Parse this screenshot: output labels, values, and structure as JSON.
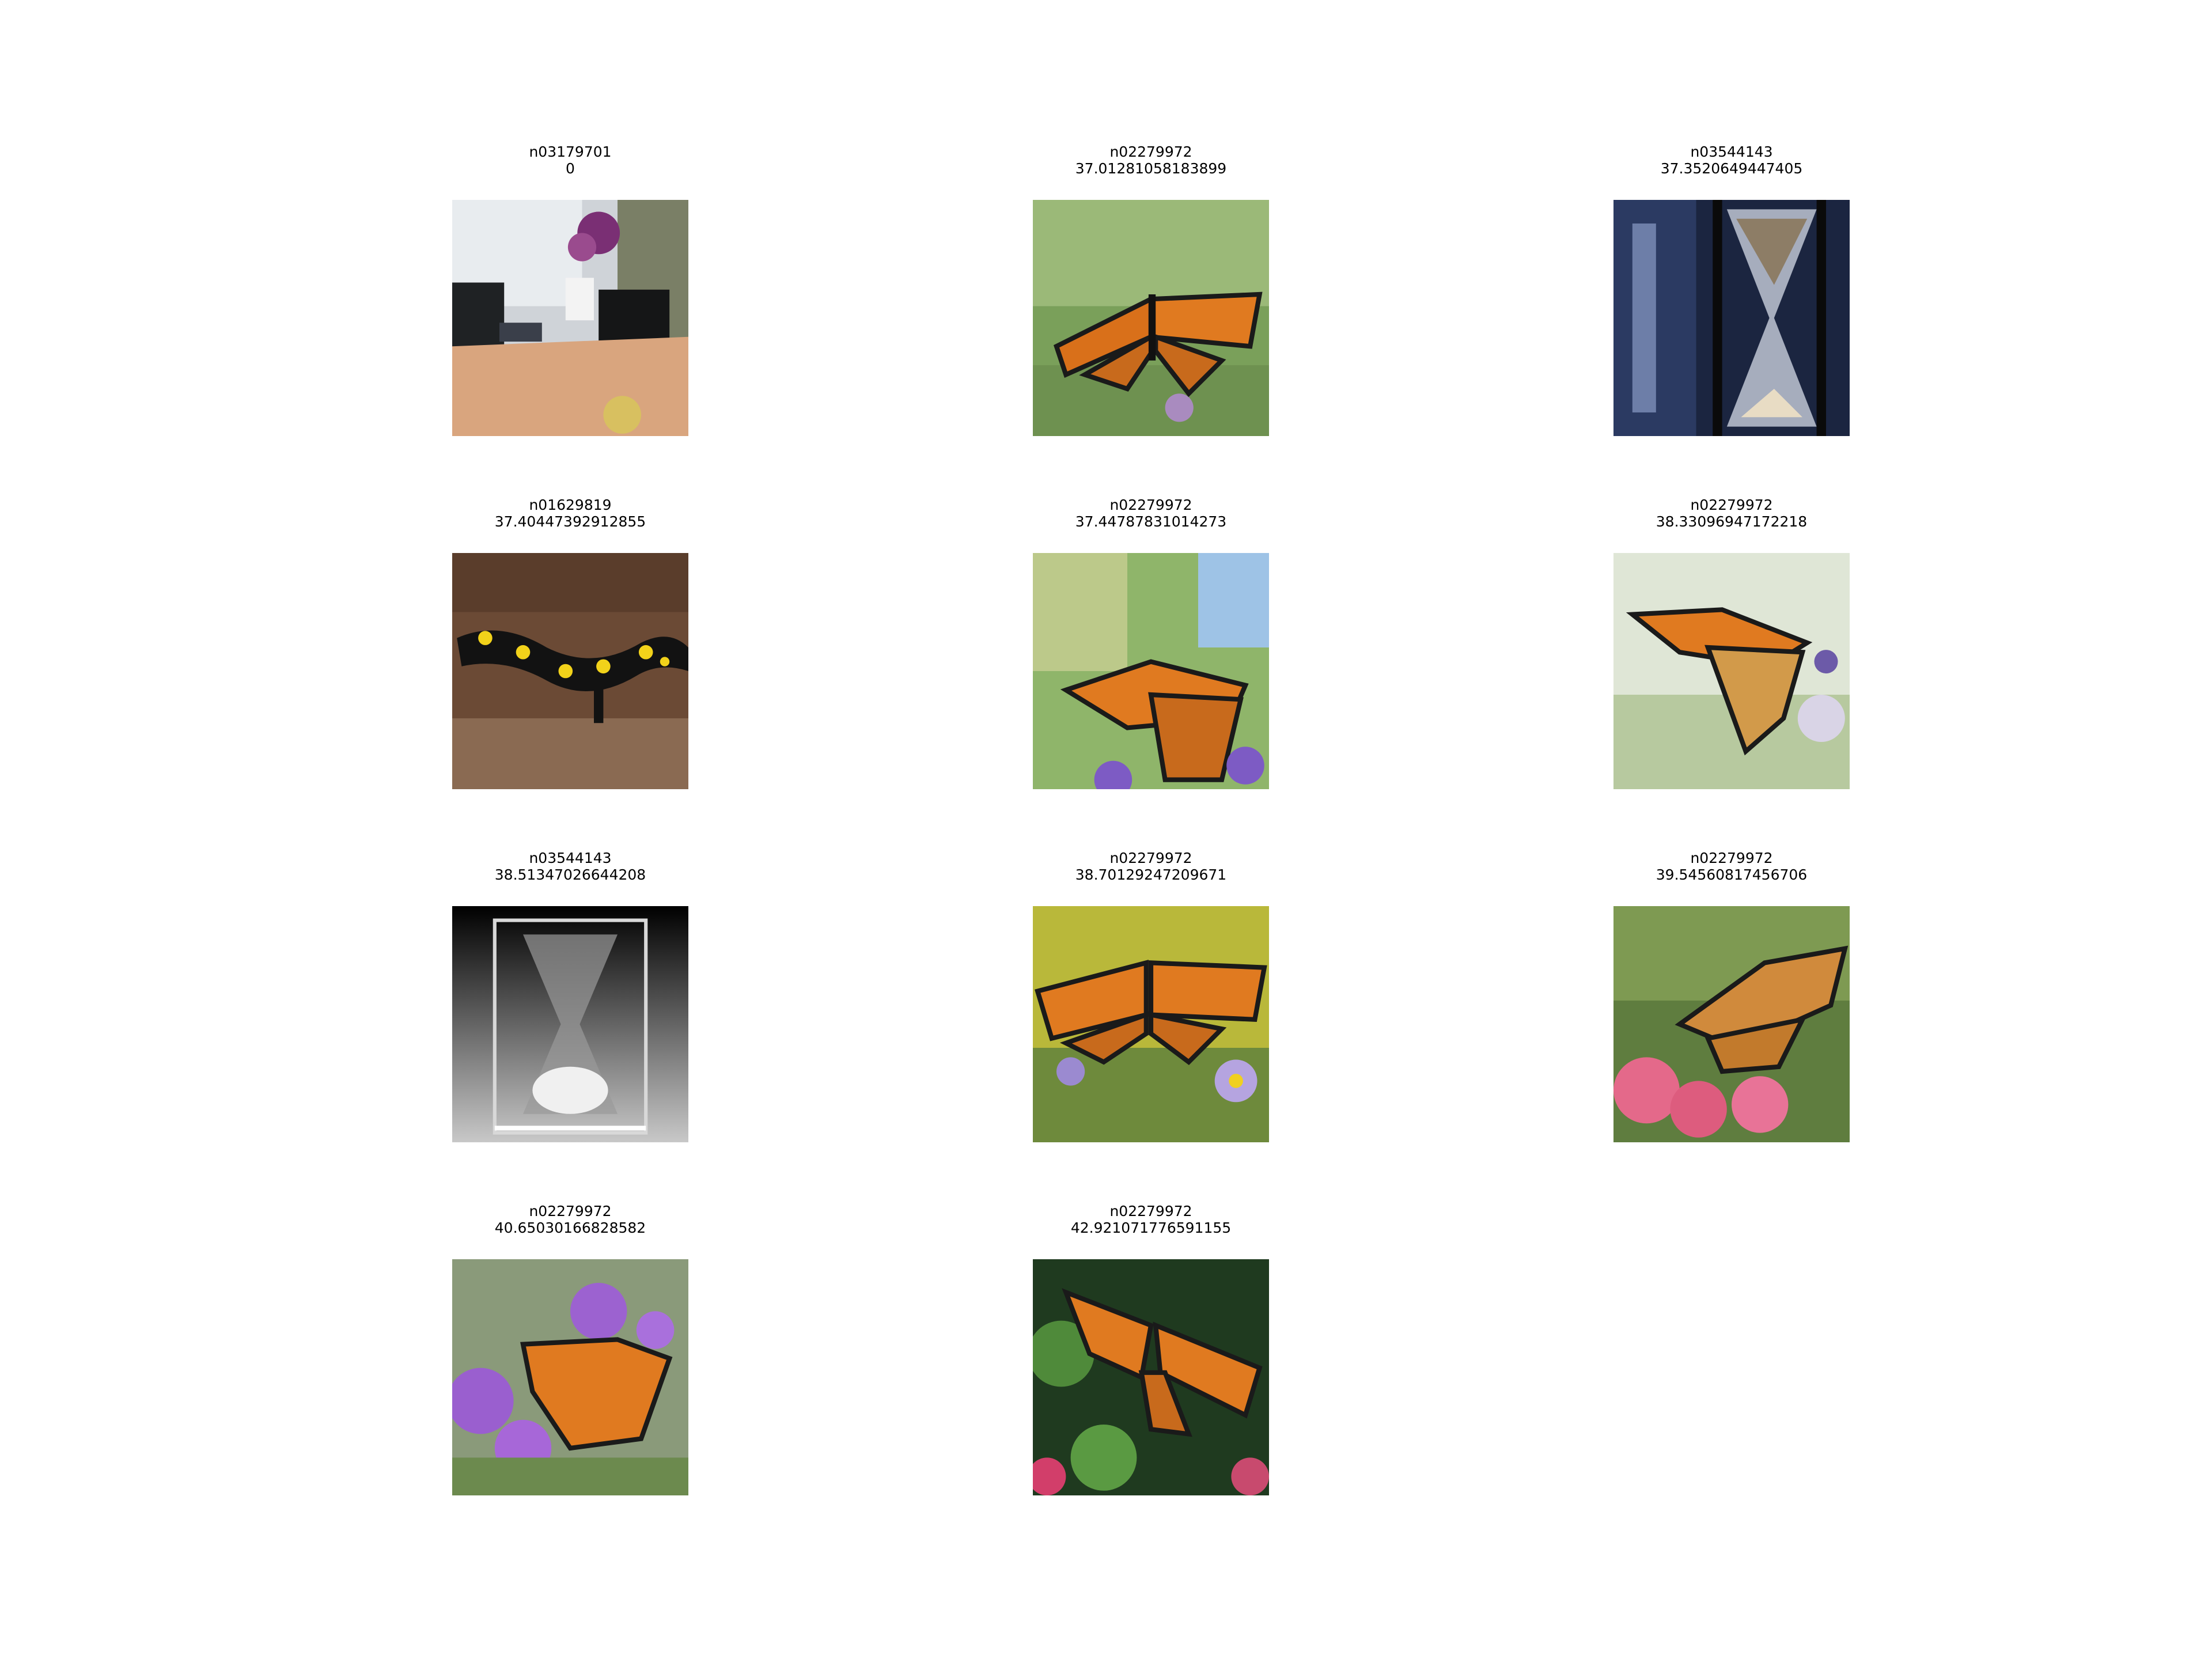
{
  "figure": {
    "tiles": [
      {
        "label": "n03179701",
        "distance": "0",
        "subject": "desk-office-photo"
      },
      {
        "label": "n02279972",
        "distance": "37.01281058183899",
        "subject": "monarch-butterfly-photo"
      },
      {
        "label": "n03544143",
        "distance": "37.3520649447405",
        "subject": "hourglass-photo"
      },
      {
        "label": "n01629819",
        "distance": "37.40447392912855",
        "subject": "salamander-photo"
      },
      {
        "label": "n02279972",
        "distance": "37.44787831014273",
        "subject": "monarch-butterfly-photo"
      },
      {
        "label": "n02279972",
        "distance": "38.33096947172218",
        "subject": "monarch-butterfly-photo"
      },
      {
        "label": "n03544143",
        "distance": "38.51347026644208",
        "subject": "hourglass-photo"
      },
      {
        "label": "n02279972",
        "distance": "38.70129247209671",
        "subject": "monarch-butterfly-photo"
      },
      {
        "label": "n02279972",
        "distance": "39.54560817456706",
        "subject": "monarch-butterfly-photo"
      },
      {
        "label": "n02279972",
        "distance": "40.65030166828582",
        "subject": "monarch-butterfly-photo"
      },
      {
        "label": "n02279972",
        "distance": "42.921071776591155",
        "subject": "monarch-butterfly-photo"
      }
    ]
  }
}
